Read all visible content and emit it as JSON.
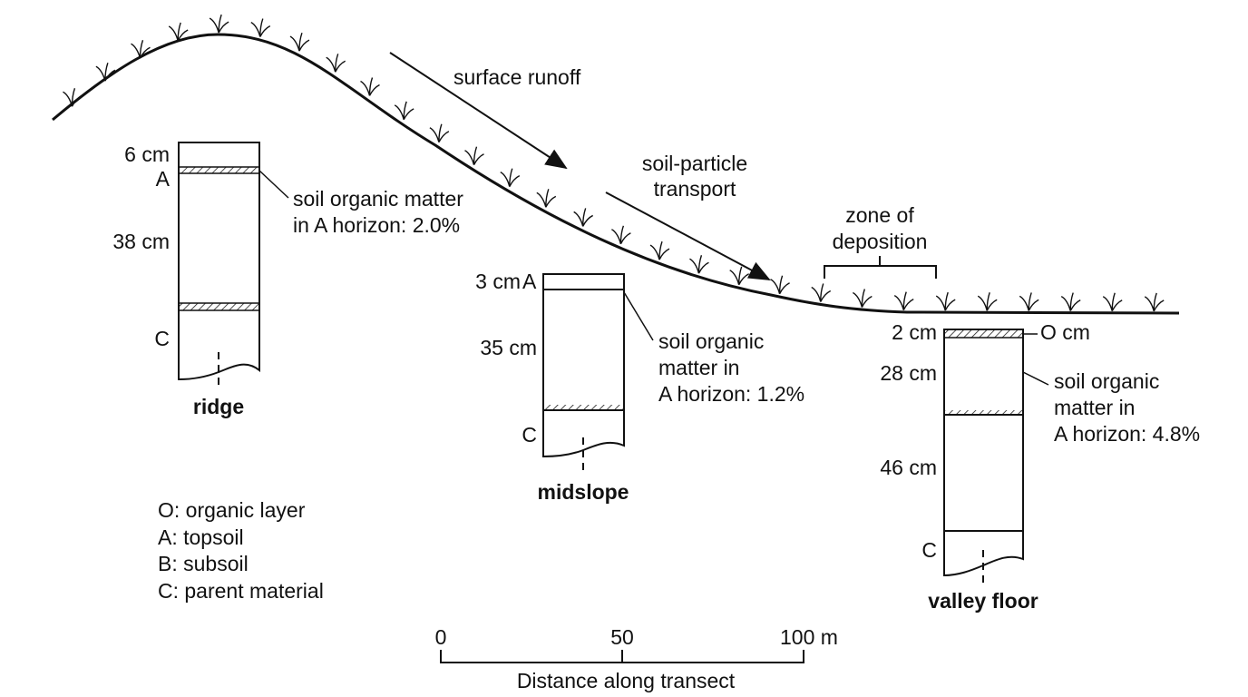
{
  "arrows": {
    "runoff": "surface runoff",
    "transport": [
      "soil-particle",
      "transport"
    ]
  },
  "deposition": [
    "zone of",
    "deposition"
  ],
  "profiles": [
    {
      "name": "ridge",
      "labels": [
        "6 cm",
        "A",
        "38 cm",
        "C"
      ],
      "note": [
        "soil organic matter",
        "in A horizon: 2.0%"
      ]
    },
    {
      "name": "midslope",
      "labels": [
        "3 cm",
        "A",
        "35 cm",
        "C"
      ],
      "note": [
        "soil organic",
        "matter in",
        "A horizon: 1.2%"
      ]
    },
    {
      "name": "valley floor",
      "labels": [
        "2 cm",
        "O cm",
        "28 cm",
        "46 cm",
        "C"
      ],
      "note": [
        "soil organic",
        "matter in",
        "A horizon: 4.8%"
      ]
    }
  ],
  "legend": [
    "O: organic layer",
    "A: topsoil",
    "B: subsoil",
    "C: parent material"
  ],
  "scale": {
    "ticks": [
      "0",
      "50",
      "100 m"
    ],
    "title": "Distance along transect"
  }
}
